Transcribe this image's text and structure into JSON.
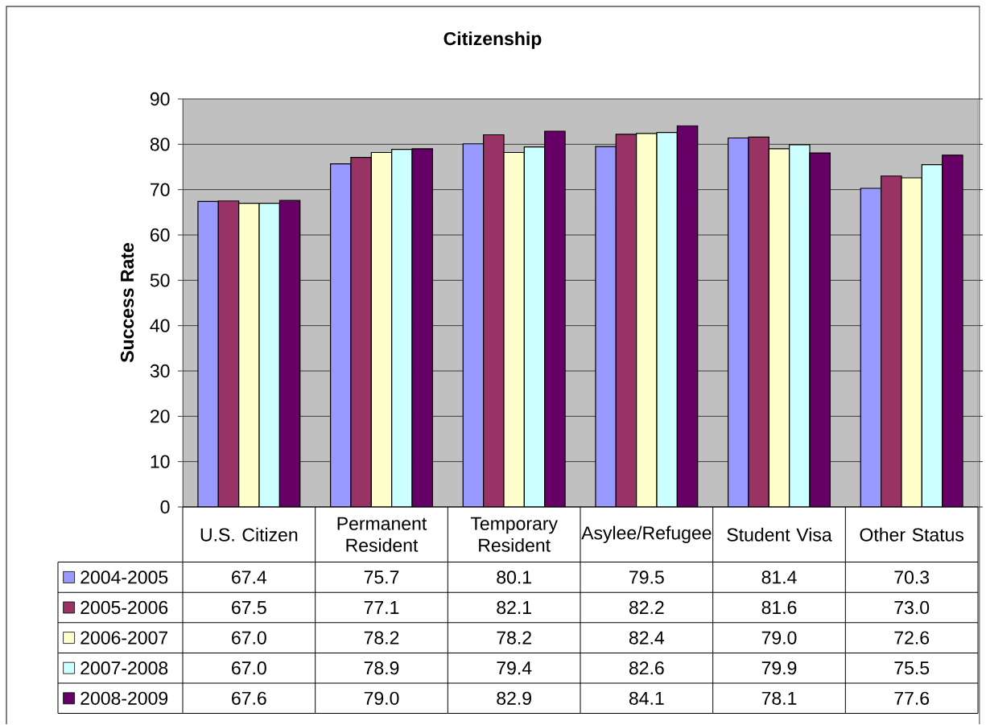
{
  "chart_data": {
    "type": "bar",
    "title": "Citizenship",
    "ylabel": "Success Rate",
    "categories": [
      "U.S. Citizen",
      "Permanent Resident",
      "Temporary Resident",
      "Asylee/Refugee",
      "Student Visa",
      "Other Status"
    ],
    "series": [
      {
        "name": "2004-2005",
        "color": "#9999ff",
        "values": [
          67.4,
          75.7,
          80.1,
          79.5,
          81.4,
          70.3
        ],
        "value_labels": [
          "67.4",
          "75.7",
          "80.1",
          "79.5",
          "81.4",
          "70.3"
        ]
      },
      {
        "name": "2005-2006",
        "color": "#993366",
        "values": [
          67.5,
          77.1,
          82.1,
          82.2,
          81.6,
          73.0
        ],
        "value_labels": [
          "67.5",
          "77.1",
          "82.1",
          "82.2",
          "81.6",
          "73.0"
        ]
      },
      {
        "name": "2006-2007",
        "color": "#ffffcc",
        "values": [
          67.0,
          78.2,
          78.2,
          82.4,
          79.0,
          72.6
        ],
        "value_labels": [
          "67.0",
          "78.2",
          "78.2",
          "82.4",
          "79.0",
          "72.6"
        ]
      },
      {
        "name": "2007-2008",
        "color": "#ccffff",
        "values": [
          67.0,
          78.9,
          79.4,
          82.6,
          79.9,
          75.5
        ],
        "value_labels": [
          "67.0",
          "78.9",
          "79.4",
          "82.6",
          "79.9",
          "75.5"
        ]
      },
      {
        "name": "2008-2009",
        "color": "#660066",
        "values": [
          67.6,
          79.0,
          82.9,
          84.1,
          78.1,
          77.6
        ],
        "value_labels": [
          "67.6",
          "79.0",
          "82.9",
          "84.1",
          "78.1",
          "77.6"
        ]
      }
    ],
    "ylim": [
      0,
      90
    ],
    "yticks": [
      0,
      10,
      20,
      30,
      40,
      50,
      60,
      70,
      80,
      90
    ],
    "grid": "y",
    "legend": "bottom"
  }
}
